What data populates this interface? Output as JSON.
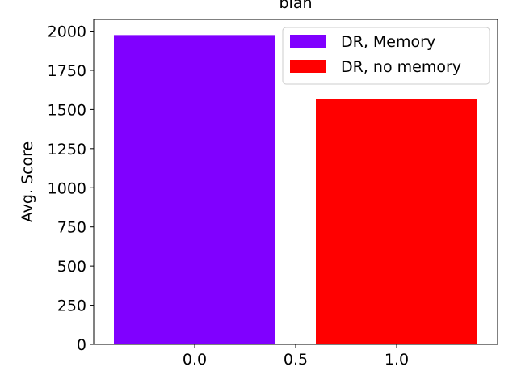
{
  "chart_data": {
    "type": "bar",
    "title": "blah",
    "xlabel": "",
    "ylabel": "Avg. Score",
    "xlim": [
      -0.5,
      1.5
    ],
    "ylim": [
      0,
      2075
    ],
    "x_ticks": [
      0.0,
      0.5,
      1.0
    ],
    "x_tick_labels": [
      "0.0",
      "0.5",
      "1.0"
    ],
    "y_ticks": [
      0,
      250,
      500,
      750,
      1000,
      1250,
      1500,
      1750,
      2000
    ],
    "y_tick_labels": [
      "0",
      "250",
      "500",
      "750",
      "1000",
      "1250",
      "1500",
      "1750",
      "2000"
    ],
    "bar_width": 0.8,
    "grid": false,
    "legend_position": "top-right",
    "series": [
      {
        "name": "DR, Memory",
        "x": 0.0,
        "value": 1975,
        "color": "#8000ff"
      },
      {
        "name": "DR, no memory",
        "x": 1.0,
        "value": 1565,
        "color": "#ff0000"
      }
    ]
  }
}
